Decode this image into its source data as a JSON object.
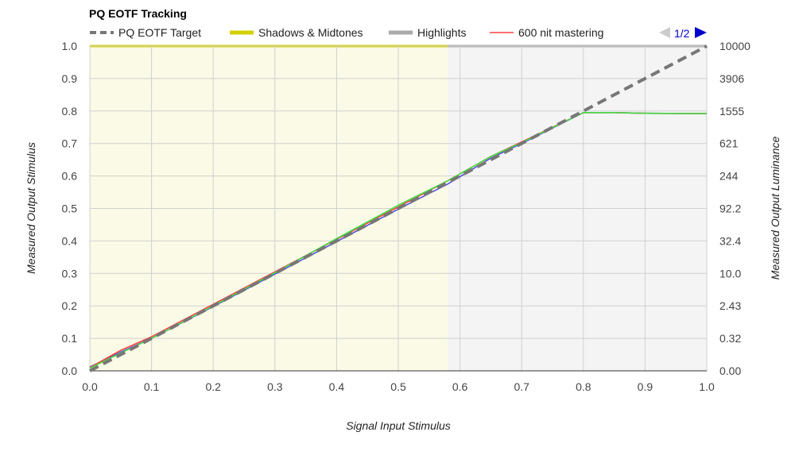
{
  "chart_data": {
    "type": "line",
    "title": "PQ EOTF Tracking",
    "xlabel": "Signal Input Stimulus",
    "ylabel": "Measured Output Stimulus",
    "y2label": "Measured Output Luminance",
    "xlim": [
      0,
      1
    ],
    "ylim": [
      0,
      1
    ],
    "x_ticks": [
      "0.0",
      "0.1",
      "0.2",
      "0.3",
      "0.4",
      "0.5",
      "0.6",
      "0.7",
      "0.8",
      "0.9",
      "1.0"
    ],
    "y_ticks": [
      "0.0",
      "0.1",
      "0.2",
      "0.3",
      "0.4",
      "0.5",
      "0.6",
      "0.7",
      "0.8",
      "0.9",
      "1.0"
    ],
    "y2_ticks": [
      "0.00",
      "0.32",
      "2.43",
      "10.0",
      "32.4",
      "92.2",
      "244",
      "621",
      "1555",
      "3906",
      "10000"
    ],
    "grid": true,
    "legend_position": "top",
    "regions": [
      {
        "name": "Shadows & Midtones",
        "from": 0.0,
        "to": 0.58,
        "color": "#fafae6",
        "edge_color": "#d4d000"
      },
      {
        "name": "Highlights",
        "from": 0.58,
        "to": 1.0,
        "color": "#f4f4f4",
        "edge_color": "#aaaaaa"
      }
    ],
    "series": [
      {
        "name": "PQ EOTF Target",
        "color": "#777777",
        "style": "dashed",
        "x": [
          0.0,
          1.0
        ],
        "y": [
          0.0,
          1.0
        ]
      },
      {
        "name": "600 nit mastering",
        "color": "#ff4040",
        "style": "solid",
        "x": [
          0.0,
          0.05,
          0.1,
          0.2,
          0.3,
          0.4,
          0.5,
          0.58,
          0.65,
          0.7,
          0.8,
          0.85,
          0.9,
          1.0
        ],
        "y": [
          0.01,
          0.063,
          0.105,
          0.205,
          0.305,
          0.405,
          0.505,
          0.585,
          0.66,
          0.705,
          0.795,
          0.795,
          0.793,
          0.792
        ]
      },
      {
        "name": "",
        "color": "#44dd44",
        "style": "solid",
        "x": [
          0.0,
          0.05,
          0.1,
          0.2,
          0.3,
          0.4,
          0.5,
          0.58,
          0.65,
          0.7,
          0.8,
          0.85,
          0.9,
          1.0
        ],
        "y": [
          0.008,
          0.055,
          0.1,
          0.2,
          0.302,
          0.407,
          0.51,
          0.585,
          0.66,
          0.703,
          0.795,
          0.795,
          0.793,
          0.792
        ]
      },
      {
        "name": "",
        "color": "#4f4fe0",
        "style": "solid",
        "x": [
          0.0,
          0.05,
          0.1,
          0.2,
          0.3,
          0.4,
          0.5,
          0.58,
          0.65,
          0.7,
          0.8,
          0.85,
          0.9,
          1.0
        ],
        "y": [
          0.012,
          0.058,
          0.1,
          0.198,
          0.298,
          0.398,
          0.498,
          0.575,
          0.655,
          0.7,
          0.795,
          0.795,
          0.793,
          0.792
        ]
      }
    ],
    "legend": [
      {
        "label": "PQ EOTF Target",
        "color": "#777777",
        "style": "dashed"
      },
      {
        "label": "Shadows & Midtones",
        "color": "#d4d000",
        "style": "thick"
      },
      {
        "label": "Highlights",
        "color": "#aaaaaa",
        "style": "thick"
      },
      {
        "label": "600 nit mastering",
        "color": "#ff4040",
        "style": "thin"
      }
    ],
    "pager": {
      "label": "1/2"
    }
  }
}
